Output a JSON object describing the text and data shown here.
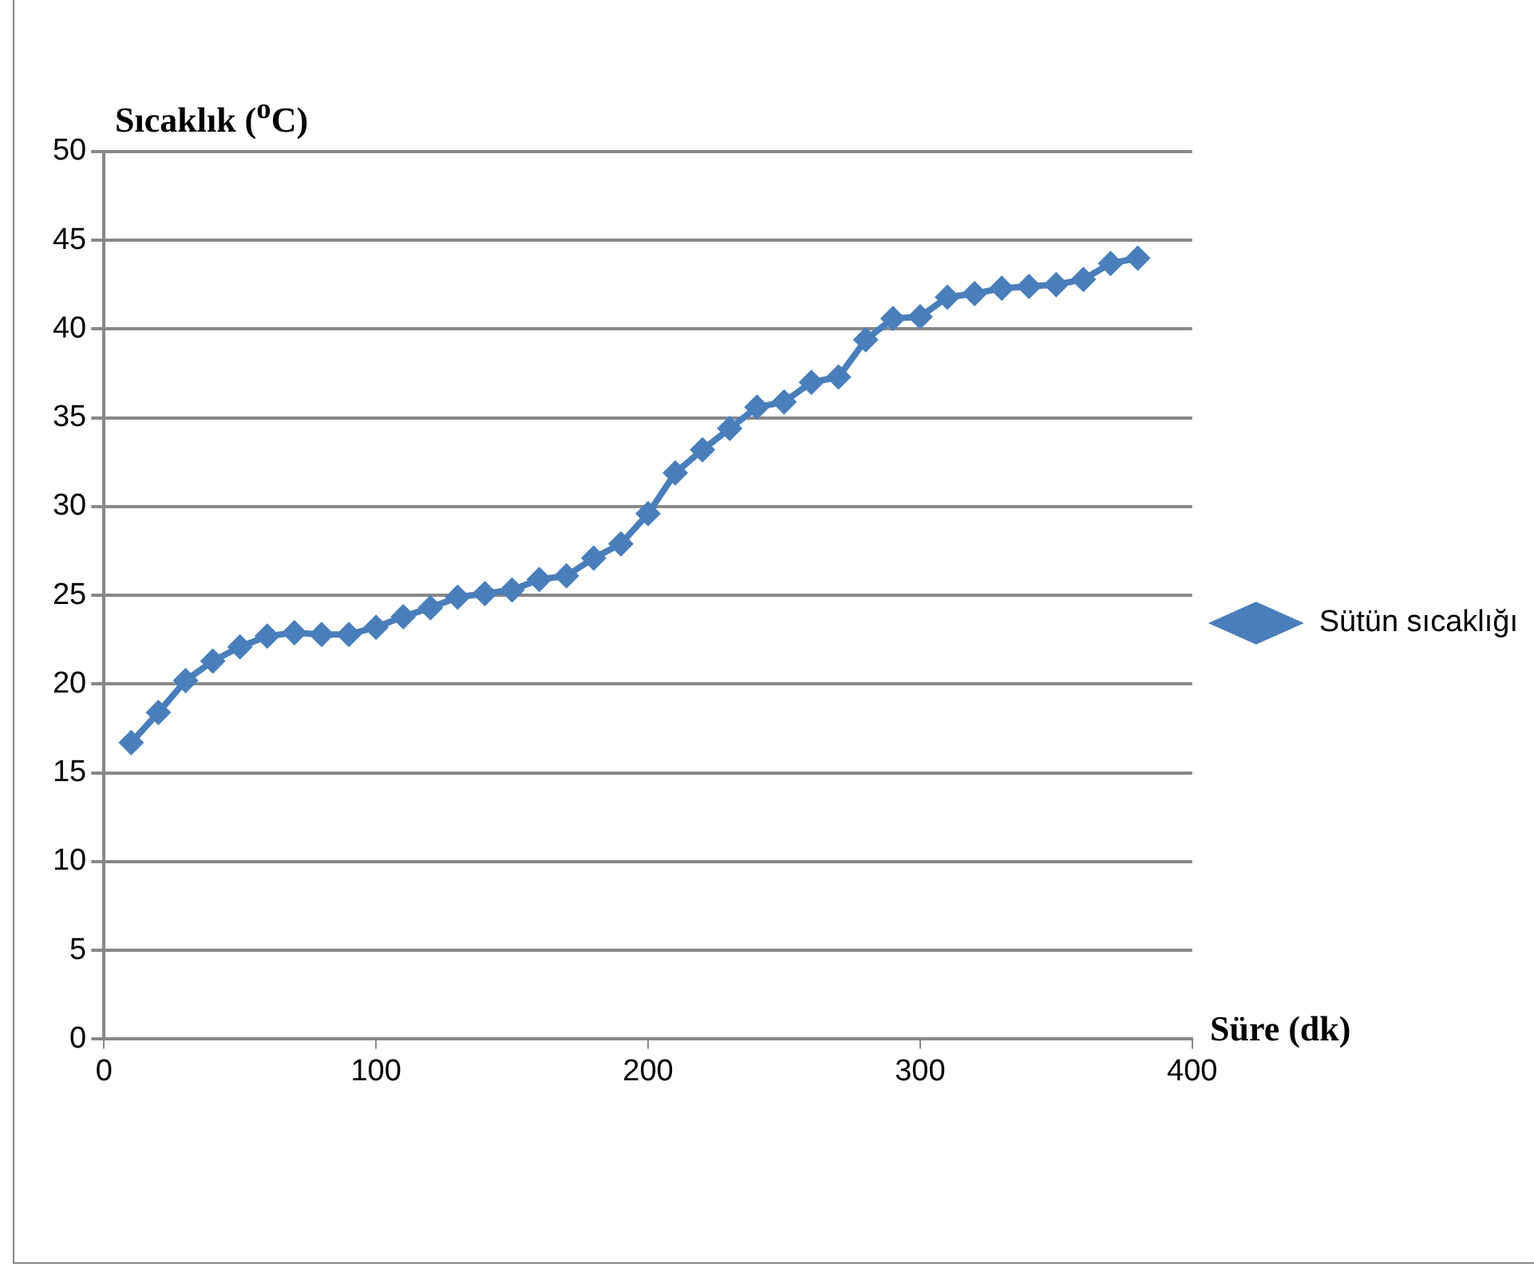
{
  "chart_data": {
    "type": "line",
    "ylabel": "Sıcaklık ($^{o}$C)",
    "xlabel": "Süre (dk)",
    "x": [
      10,
      20,
      30,
      40,
      50,
      60,
      70,
      80,
      90,
      100,
      110,
      120,
      130,
      140,
      150,
      160,
      170,
      180,
      190,
      200,
      210,
      220,
      230,
      240,
      250,
      260,
      270,
      280,
      290,
      300,
      310,
      320,
      330,
      340,
      350,
      360,
      370,
      380
    ],
    "series": [
      {
        "name": "Sütün sıcaklığı",
        "color": "#4a7ebb",
        "values": [
          16.7,
          18.4,
          20.2,
          21.3,
          22.1,
          22.7,
          22.9,
          22.8,
          22.8,
          23.2,
          23.8,
          24.3,
          24.9,
          25.1,
          25.3,
          25.9,
          26.1,
          27.1,
          27.9,
          29.6,
          31.9,
          33.2,
          34.4,
          35.6,
          35.9,
          37.0,
          37.3,
          39.4,
          40.6,
          40.7,
          41.8,
          42.0,
          42.3,
          42.4,
          42.5,
          42.8,
          43.7,
          44.0
        ]
      }
    ],
    "xlim": [
      0,
      400
    ],
    "xticks": [
      0,
      100,
      200,
      300,
      400
    ],
    "ylim": [
      0,
      50
    ],
    "yticks": [
      0,
      5,
      10,
      15,
      20,
      25,
      30,
      35,
      40,
      45,
      50
    ],
    "grid": "y",
    "legend": "right",
    "marker": "diamond",
    "line_style": "solid"
  }
}
